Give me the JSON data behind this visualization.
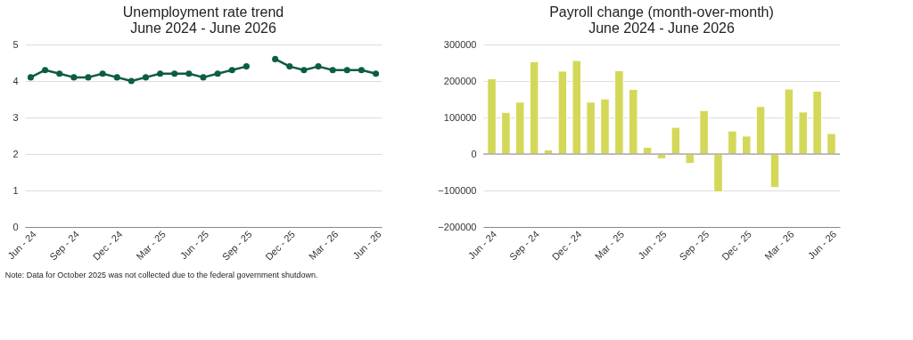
{
  "chart_data": [
    {
      "type": "line",
      "title": [
        "Unemployment rate trend",
        "June 2024 - June 2026"
      ],
      "categories": [
        "Jun - 24",
        null,
        null,
        "Sep - 24",
        null,
        null,
        "Dec - 24",
        null,
        null,
        "Mar - 25",
        null,
        null,
        "Jun - 25",
        null,
        null,
        "Sep - 25",
        null,
        null,
        "Dec - 25",
        null,
        null,
        "Mar - 26",
        null,
        null,
        "Jun - 26"
      ],
      "series": [
        {
          "color": "#0d5c45",
          "values": [
            4.1,
            4.3,
            4.2,
            4.1,
            4.1,
            4.2,
            4.1,
            4.0,
            4.1,
            4.2,
            4.2,
            4.2,
            4.1,
            4.2,
            4.3,
            4.4,
            null,
            4.6,
            4.4,
            4.3,
            4.4,
            4.3,
            4.3,
            4.3,
            4.2
          ]
        }
      ],
      "ylim": [
        0,
        5
      ],
      "yticks": [
        0,
        1,
        2,
        3,
        4,
        5
      ],
      "grid": "y",
      "marker": "circle",
      "line_style": "solid",
      "annotations": [
        "Note: Data for October 2025 was not collected due to the federal government shutdown."
      ]
    },
    {
      "type": "bar",
      "title": [
        "Payroll change (month-over-month)",
        "June 2024 - June 2026"
      ],
      "categories": [
        "Jun - 24",
        null,
        null,
        "Sep - 24",
        null,
        null,
        "Dec - 24",
        null,
        null,
        "Mar - 25",
        null,
        null,
        "Jun - 25",
        null,
        null,
        "Sep - 25",
        null,
        null,
        "Dec - 25",
        null,
        null,
        "Mar - 26",
        null,
        null,
        "Jun - 26"
      ],
      "series": [
        {
          "color": "#d4d858",
          "values": [
            206000,
            114000,
            142000,
            253000,
            11000,
            227000,
            256000,
            142000,
            151000,
            228000,
            177000,
            18000,
            -13000,
            73000,
            -26000,
            119000,
            -104000,
            63000,
            49000,
            130000,
            -92000,
            178000,
            115000,
            172000,
            56000
          ]
        }
      ],
      "ylim": [
        -200000,
        300000
      ],
      "yticks": [
        -200000,
        -100000,
        0,
        100000,
        200000,
        300000
      ],
      "grid": "y"
    }
  ]
}
